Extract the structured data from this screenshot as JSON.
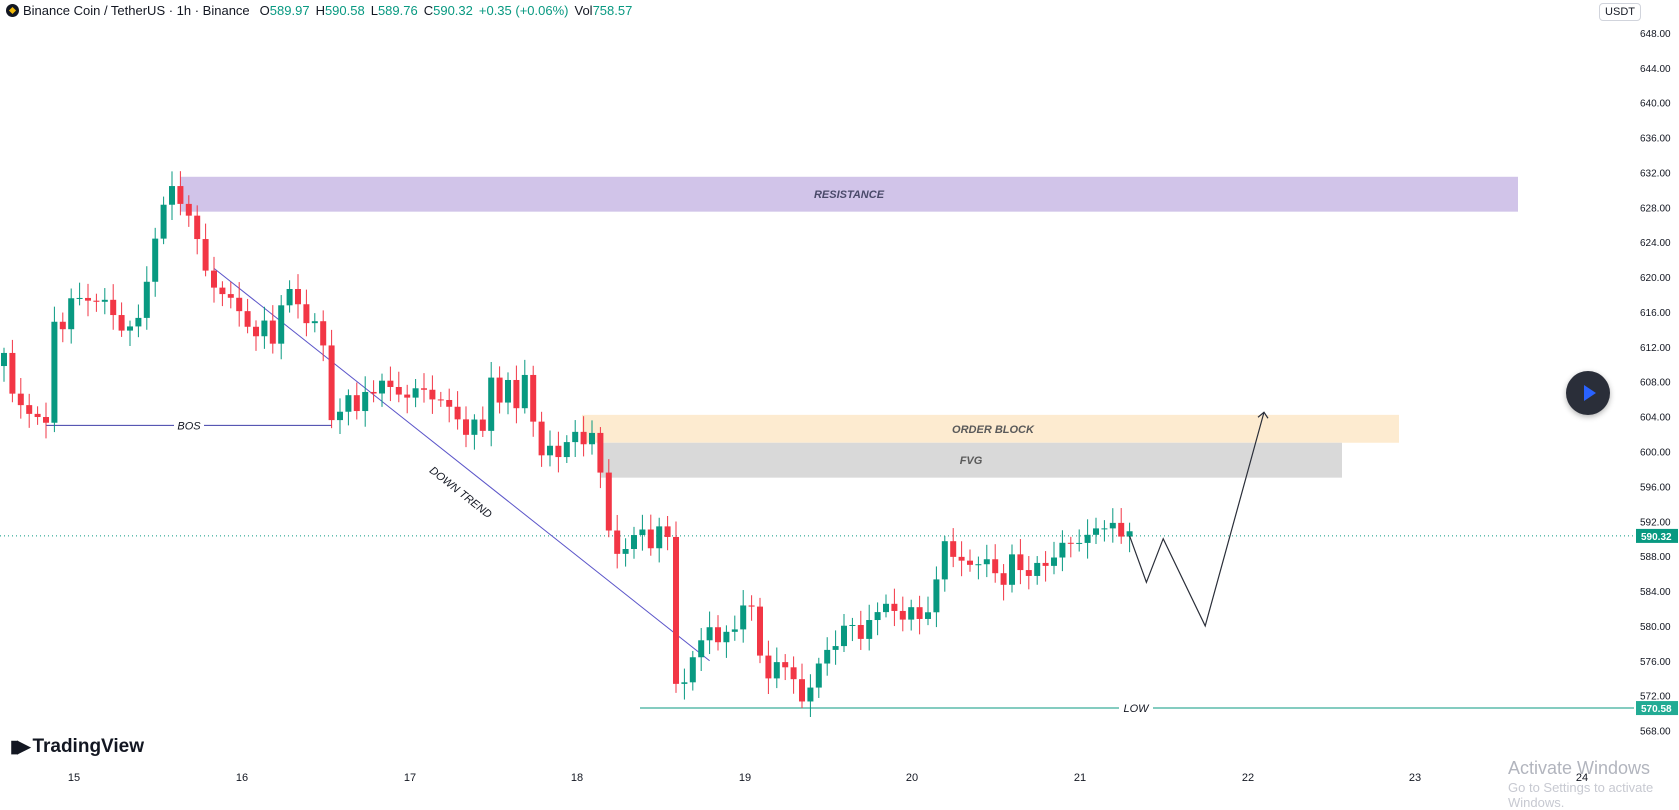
{
  "header": {
    "symbol": "Binance Coin / TetherUS · 1h · Binance",
    "o_label": "O",
    "o_value": "589.97",
    "h_label": "H",
    "h_value": "590.58",
    "l_label": "L",
    "l_value": "589.76",
    "c_label": "C",
    "c_value": "590.32",
    "change": "+0.35 (+0.06%)",
    "vol_label": "Vol",
    "vol_value": "758.57"
  },
  "currency_button": "USDT",
  "branding": {
    "logo_text": "TradingView"
  },
  "watermark": {
    "title": "Activate Windows",
    "subtitle": "Go to Settings to activate Windows."
  },
  "colors": {
    "up": "#089981",
    "down": "#f23645",
    "resistance": "#d1c4e9",
    "order_block": "#fdebd0",
    "fvg": "#d9d9d9",
    "trend": "#5b55c9"
  },
  "chart_data": {
    "type": "candlestick",
    "ylim": [
      566,
      652
    ],
    "y_ticks": [
      "648.00",
      "644.00",
      "640.00",
      "636.00",
      "632.00",
      "628.00",
      "624.00",
      "620.00",
      "616.00",
      "612.00",
      "608.00",
      "604.00",
      "600.00",
      "596.00",
      "592.00",
      "588.00",
      "584.00",
      "580.00",
      "576.00",
      "572.00",
      "568.00"
    ],
    "x_ticks": [
      "15",
      "16",
      "17",
      "18",
      "19",
      "20",
      "21",
      "22",
      "23",
      "24"
    ],
    "price_labels": {
      "current": "590.32",
      "low": "570.58"
    },
    "annotations": {
      "resistance": "RESISTANCE",
      "order_block": "ORDER BLOCK",
      "fvg": "FVG",
      "bos": "BOS",
      "trend": "DOWN TREND",
      "low": "LOW"
    },
    "zones": {
      "resistance": [
        627.5,
        631.5
      ],
      "order_block": [
        601,
        604.2
      ],
      "fvg": [
        597,
        601
      ]
    },
    "bos_level": 603,
    "low_level": 570.58,
    "current_price": 590.32,
    "anchors": [
      [
        0,
        611
      ],
      [
        1,
        606
      ],
      [
        3,
        605
      ],
      [
        4,
        604
      ],
      [
        5,
        603
      ],
      [
        6,
        615
      ],
      [
        7,
        614
      ],
      [
        8,
        617
      ],
      [
        10,
        618
      ],
      [
        12,
        617
      ],
      [
        14,
        614
      ],
      [
        15,
        614
      ],
      [
        16,
        615
      ],
      [
        17,
        620
      ],
      [
        18,
        625
      ],
      [
        19,
        628
      ],
      [
        20,
        630
      ],
      [
        22,
        627
      ],
      [
        23,
        624
      ],
      [
        24,
        621
      ],
      [
        26,
        618
      ],
      [
        28,
        616
      ],
      [
        30,
        613
      ],
      [
        31,
        615
      ],
      [
        32,
        613
      ],
      [
        33,
        617
      ],
      [
        34,
        618
      ],
      [
        36,
        615
      ],
      [
        37,
        615
      ],
      [
        38,
        612
      ],
      [
        39,
        604
      ],
      [
        40,
        605
      ],
      [
        41,
        606
      ],
      [
        42,
        604
      ],
      [
        43,
        607
      ],
      [
        44,
        607
      ],
      [
        45,
        608
      ],
      [
        47,
        607
      ],
      [
        48,
        606
      ],
      [
        50,
        607
      ],
      [
        52,
        606
      ],
      [
        54,
        604
      ],
      [
        55,
        602
      ],
      [
        56,
        603
      ],
      [
        57,
        602
      ],
      [
        58,
        609
      ],
      [
        59,
        606
      ],
      [
        60,
        608
      ],
      [
        61,
        605
      ],
      [
        62,
        609
      ],
      [
        63,
        603
      ],
      [
        64,
        599
      ],
      [
        65,
        601
      ],
      [
        66,
        600
      ],
      [
        68,
        602
      ],
      [
        69,
        601
      ],
      [
        70,
        602
      ],
      [
        71,
        597
      ],
      [
        72,
        591
      ],
      [
        73,
        589
      ],
      [
        74,
        589
      ],
      [
        75,
        590
      ],
      [
        76,
        591
      ],
      [
        77,
        589
      ],
      [
        78,
        591
      ],
      [
        79,
        590
      ],
      [
        80,
        574
      ],
      [
        81,
        574
      ],
      [
        82,
        576
      ],
      [
        83,
        578
      ],
      [
        84,
        580
      ],
      [
        85,
        578
      ],
      [
        86,
        579
      ],
      [
        87,
        580
      ],
      [
        88,
        583
      ],
      [
        89,
        582
      ],
      [
        90,
        576
      ],
      [
        91,
        574
      ],
      [
        92,
        576
      ],
      [
        93,
        575
      ],
      [
        94,
        574
      ],
      [
        95,
        572
      ],
      [
        96,
        573
      ],
      [
        97,
        575
      ],
      [
        98,
        577
      ],
      [
        99,
        578
      ],
      [
        100,
        580
      ],
      [
        101,
        580
      ],
      [
        102,
        579
      ],
      [
        103,
        581
      ],
      [
        104,
        581
      ],
      [
        105,
        582
      ],
      [
        106,
        582
      ],
      [
        107,
        581
      ],
      [
        108,
        582
      ],
      [
        109,
        581
      ],
      [
        110,
        582
      ],
      [
        111,
        585
      ],
      [
        112,
        589
      ],
      [
        113,
        588
      ],
      [
        114,
        588
      ],
      [
        115,
        587
      ],
      [
        116,
        587
      ],
      [
        117,
        588
      ],
      [
        118,
        586
      ],
      [
        119,
        584
      ],
      [
        120,
        588
      ],
      [
        121,
        587
      ],
      [
        122,
        586
      ],
      [
        123,
        587
      ],
      [
        124,
        587
      ],
      [
        125,
        588
      ],
      [
        126,
        589
      ],
      [
        127,
        589
      ],
      [
        128,
        590
      ],
      [
        129,
        591
      ],
      [
        130,
        591
      ],
      [
        131,
        591
      ],
      [
        132,
        592
      ],
      [
        133,
        590
      ],
      [
        134,
        590.3
      ]
    ],
    "projection": [
      [
        134,
        590.32
      ],
      [
        136,
        585
      ],
      [
        138,
        590
      ],
      [
        143,
        580
      ],
      [
        150,
        604.5
      ]
    ]
  }
}
